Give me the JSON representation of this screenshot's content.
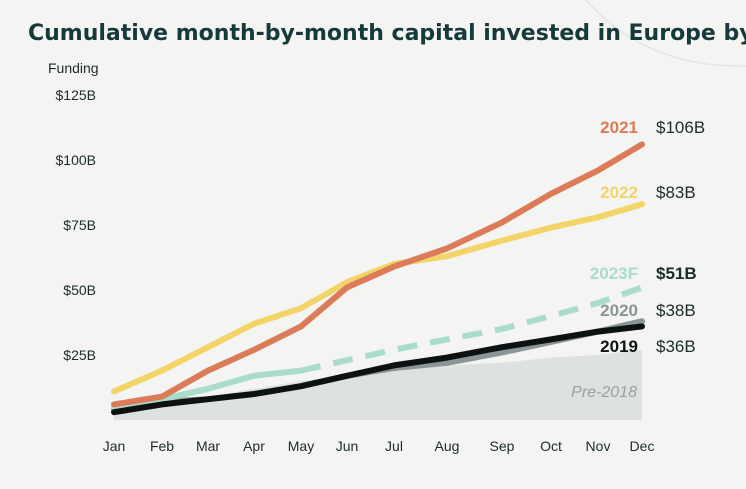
{
  "chart_data": {
    "type": "line",
    "title": "Cumulative month-by-month capital invested in Europe by year",
    "ylabel": "Funding",
    "ylim": [
      0,
      125
    ],
    "y_ticks": [
      "$125B",
      "$100B",
      "$75B",
      "$50B",
      "$25B"
    ],
    "y_tick_values": [
      125,
      100,
      75,
      50,
      25
    ],
    "categories": [
      "Jan",
      "Feb",
      "Mar",
      "Apr",
      "May",
      "Jun",
      "Jul",
      "Aug",
      "Sep",
      "Oct",
      "Nov",
      "Dec"
    ],
    "area": {
      "name": "Pre-2018",
      "values": [
        3,
        6,
        9,
        12,
        15,
        17,
        19,
        21,
        22,
        24,
        25,
        27
      ],
      "color": "#dde2df"
    },
    "series": [
      {
        "name": "2020",
        "end_label": "$38B",
        "color": "#8b9596",
        "dashed": false,
        "values": [
          4,
          7,
          8,
          10,
          13,
          17,
          20,
          22,
          26,
          30,
          34,
          38
        ]
      },
      {
        "name": "2023F",
        "end_label": "$51B",
        "color": "#a9dccd",
        "dashed": false,
        "values": [
          5,
          8,
          12,
          17,
          19,
          null,
          null,
          null,
          null,
          null,
          null,
          null
        ]
      },
      {
        "name": "2023F",
        "end_label": "",
        "color": "#a9dccd",
        "dashed": true,
        "values": [
          null,
          null,
          null,
          null,
          19,
          23,
          27,
          31,
          35,
          40,
          45,
          51
        ]
      },
      {
        "name": "2022",
        "end_label": "$83B",
        "color": "#f2d468",
        "dashed": false,
        "values": [
          11,
          19,
          28,
          37,
          43,
          53,
          60,
          63,
          69,
          74,
          78,
          83
        ]
      },
      {
        "name": "2021",
        "end_label": "$106B",
        "color": "#db7b57",
        "dashed": false,
        "values": [
          6,
          9,
          19,
          27,
          36,
          51,
          59,
          66,
          76,
          87,
          96,
          106
        ]
      },
      {
        "name": "2019",
        "end_label": "$36B",
        "color": "#0c1212",
        "dashed": false,
        "values": [
          3,
          6,
          8,
          10,
          13,
          17,
          21,
          24,
          28,
          31,
          34,
          36
        ]
      }
    ],
    "series_labels": [
      {
        "name": "2021",
        "value": "$106B",
        "color": "#db7b57",
        "bold_value": false
      },
      {
        "name": "2022",
        "value": "$83B",
        "color": "#f2d468",
        "bold_value": false
      },
      {
        "name": "2023F",
        "value": "$51B",
        "color": "#a9dccd",
        "bold_value": true
      },
      {
        "name": "2020",
        "value": "$38B",
        "color": "#8b9596",
        "bold_value": false
      },
      {
        "name": "2019",
        "value": "$36B",
        "color": "#0c1212",
        "bold_value": false
      }
    ],
    "grid": false,
    "legend": "inline-right"
  }
}
